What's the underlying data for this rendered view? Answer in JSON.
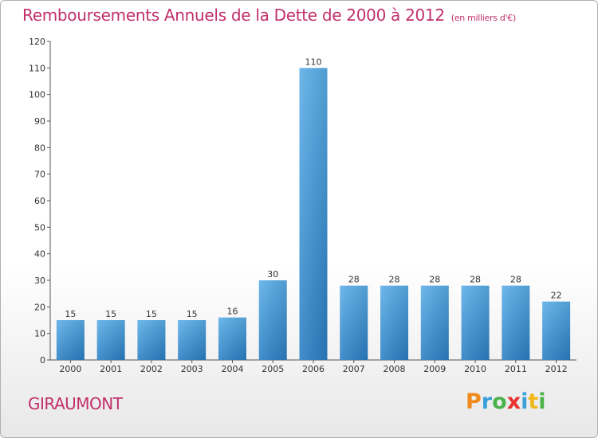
{
  "chart_data": {
    "type": "bar",
    "title": "Remboursements Annuels de la Dette de 2000 à 2012",
    "subtitle": "(en milliers d'€)",
    "categories": [
      "2000",
      "2001",
      "2002",
      "2003",
      "2004",
      "2005",
      "2006",
      "2007",
      "2008",
      "2009",
      "2010",
      "2011",
      "2012"
    ],
    "values": [
      15,
      15,
      15,
      15,
      16,
      30,
      110,
      28,
      28,
      28,
      28,
      28,
      22
    ],
    "ylim": [
      0,
      120
    ],
    "yticks": [
      0,
      10,
      20,
      30,
      40,
      50,
      60,
      70,
      80,
      90,
      100,
      110,
      120
    ],
    "grid": false,
    "bar_color": "#3a93d8"
  },
  "commune": "GIRAUMONT",
  "logo": {
    "text": "Proxiti",
    "letters": [
      {
        "ch": "P",
        "color": "#f08a1c"
      },
      {
        "ch": "r",
        "color": "#3aa0d8"
      },
      {
        "ch": "o",
        "color": "#4bb34b"
      },
      {
        "ch": "x",
        "color": "#e8312f"
      },
      {
        "ch": "i",
        "color": "#3aa0d8"
      },
      {
        "ch": "t",
        "color": "#f0b81c"
      },
      {
        "ch": "i",
        "color": "#4bb34b"
      }
    ]
  }
}
